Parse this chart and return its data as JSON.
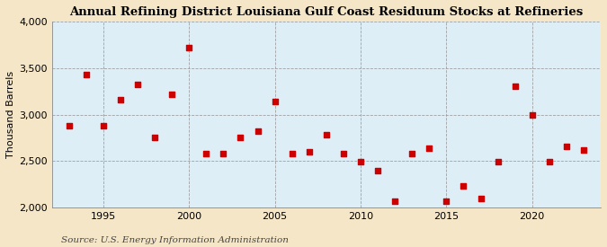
{
  "title": "Annual Refining District Louisiana Gulf Coast Residuum Stocks at Refineries",
  "ylabel": "Thousand Barrels",
  "source": "Source: U.S. Energy Information Administration",
  "background_color": "#f5e6c8",
  "plot_background_color": "#ddeef6",
  "marker_color": "#cc0000",
  "years": [
    1993,
    1994,
    1995,
    1996,
    1997,
    1998,
    1999,
    2000,
    2001,
    2002,
    2003,
    2004,
    2005,
    2006,
    2007,
    2008,
    2009,
    2010,
    2011,
    2012,
    2013,
    2014,
    2015,
    2016,
    2017,
    2018,
    2019,
    2020,
    2021,
    2022,
    2023
  ],
  "values": [
    2880,
    3430,
    2880,
    3160,
    3320,
    2750,
    3220,
    3720,
    2580,
    2580,
    2750,
    2820,
    3140,
    2580,
    2600,
    2780,
    2580,
    2490,
    2400,
    2070,
    2580,
    2640,
    2070,
    2230,
    2100,
    2490,
    3300,
    3000,
    2490,
    2660,
    2620
  ],
  "ylim": [
    2000,
    4000
  ],
  "yticks": [
    2000,
    2500,
    3000,
    3500,
    4000
  ],
  "xticks": [
    1995,
    2000,
    2005,
    2010,
    2015,
    2020
  ],
  "xlim": [
    1992,
    2024
  ],
  "title_fontsize": 9.5,
  "axis_fontsize": 8,
  "source_fontsize": 7.5,
  "marker_size": 14
}
